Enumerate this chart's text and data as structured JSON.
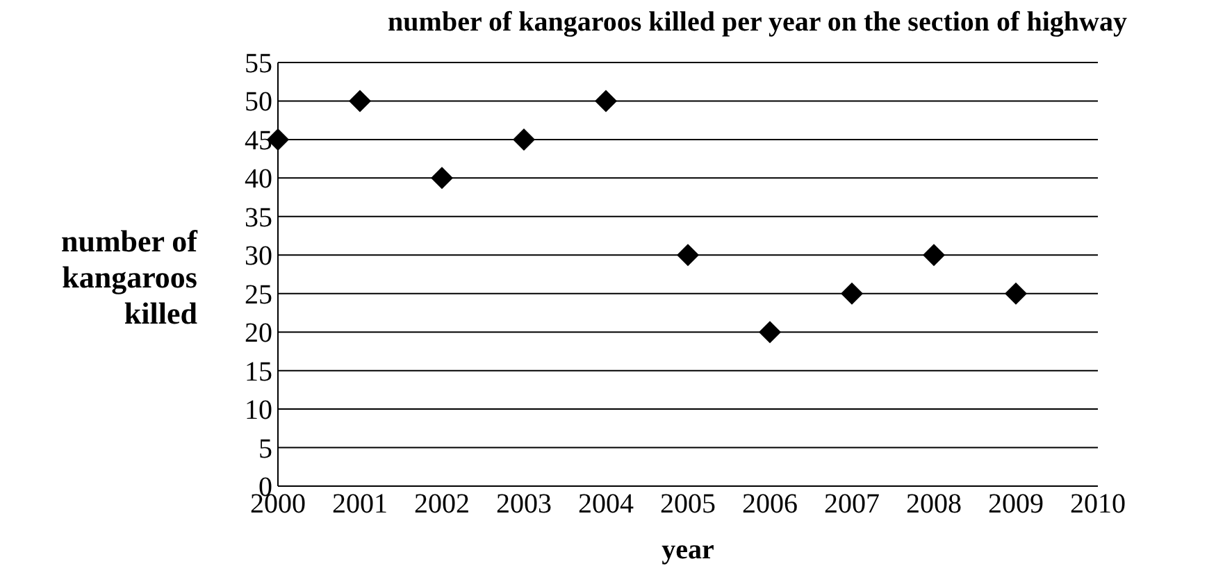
{
  "chart_data": {
    "type": "scatter",
    "title": "number of kangaroos killed per year on the section of highway",
    "xlabel": "year",
    "ylabel": "number of kangaroos killed",
    "x": [
      2000,
      2001,
      2002,
      2003,
      2004,
      2005,
      2006,
      2007,
      2008,
      2009
    ],
    "series": [
      {
        "color": "#000000",
        "values": [
          45,
          50,
          40,
          45,
          50,
          30,
          20,
          25,
          30,
          25
        ]
      }
    ],
    "xlim": [
      2000,
      2010
    ],
    "xticks": [
      2000,
      2001,
      2002,
      2003,
      2004,
      2005,
      2006,
      2007,
      2008,
      2009,
      2010
    ],
    "ylim": [
      0,
      55
    ],
    "yticks": [
      0,
      5,
      10,
      15,
      20,
      25,
      30,
      35,
      40,
      45,
      50,
      55
    ],
    "grid": "y",
    "marker": "diamond"
  }
}
